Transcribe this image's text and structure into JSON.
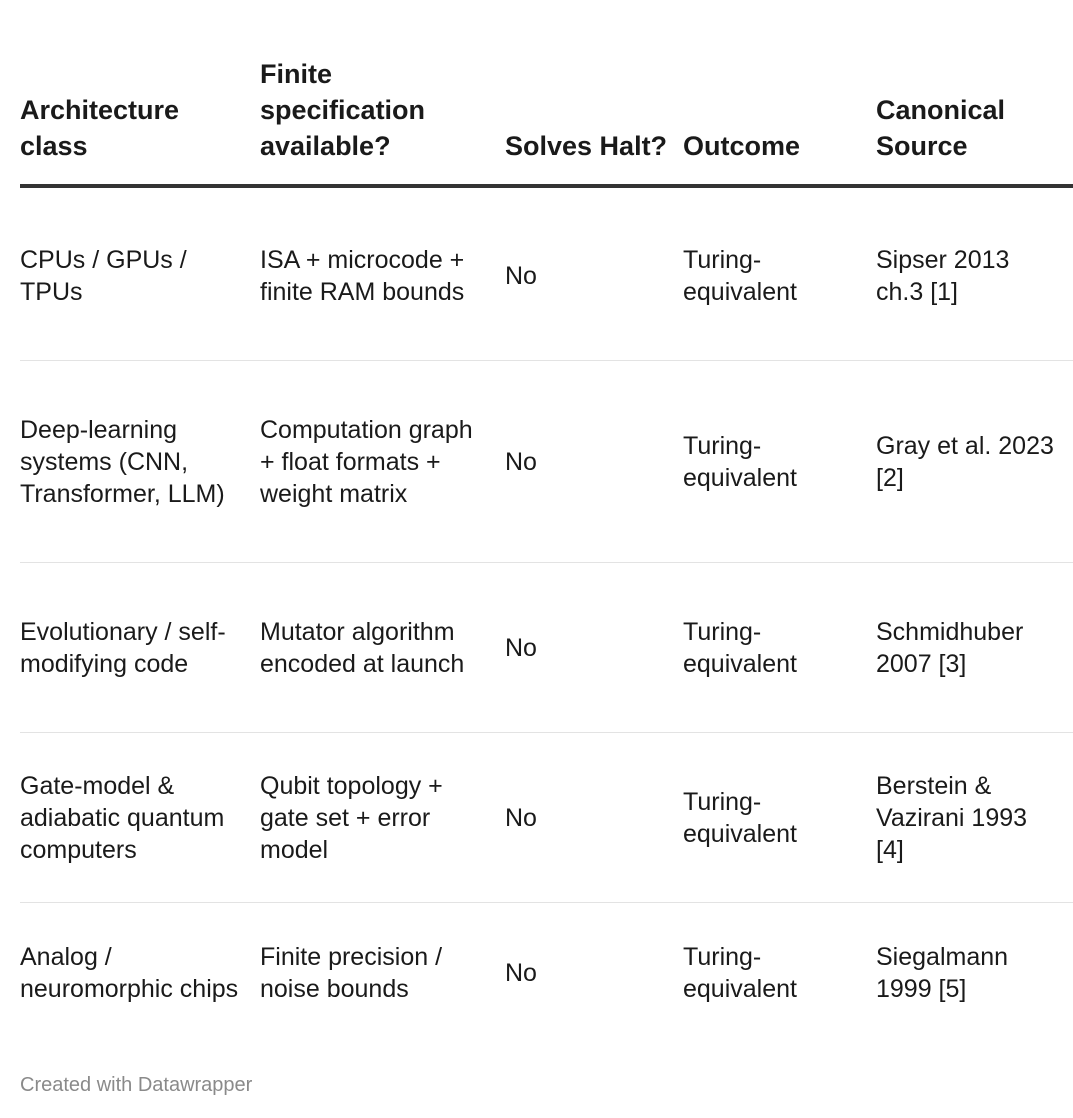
{
  "table": {
    "headers": [
      "Architecture class",
      "Finite specification available?",
      "Solves Halt?",
      "Outcome",
      "Canonical Source"
    ],
    "rows": [
      [
        "CPUs / GPUs / TPUs",
        "ISA + microcode + finite RAM bounds",
        "No",
        "Turing-equivalent",
        "Sipser 2013 ch.3 [1]"
      ],
      [
        "Deep-learning systems (CNN, Transformer, LLM)",
        "Computation graph + float formats + weight matrix",
        "No",
        "Turing-equivalent",
        "Gray et al. 2023 [2]"
      ],
      [
        "Evolutionary / self-modifying code",
        "Mutator algorithm encoded at launch",
        "No",
        "Turing-equivalent",
        "Schmidhuber 2007 [3]"
      ],
      [
        "Gate-model & adiabatic quantum computers",
        "Qubit topology + gate set + error model",
        "No",
        "Turing-equivalent",
        "Berstein & Vazirani 1993 [4]"
      ],
      [
        "Analog / neuromorphic chips",
        "Finite precision / noise bounds",
        "No",
        "Turing-equivalent",
        "Siegalmann 1999 [5]"
      ]
    ]
  },
  "footer": {
    "credit": "Created with Datawrapper"
  }
}
